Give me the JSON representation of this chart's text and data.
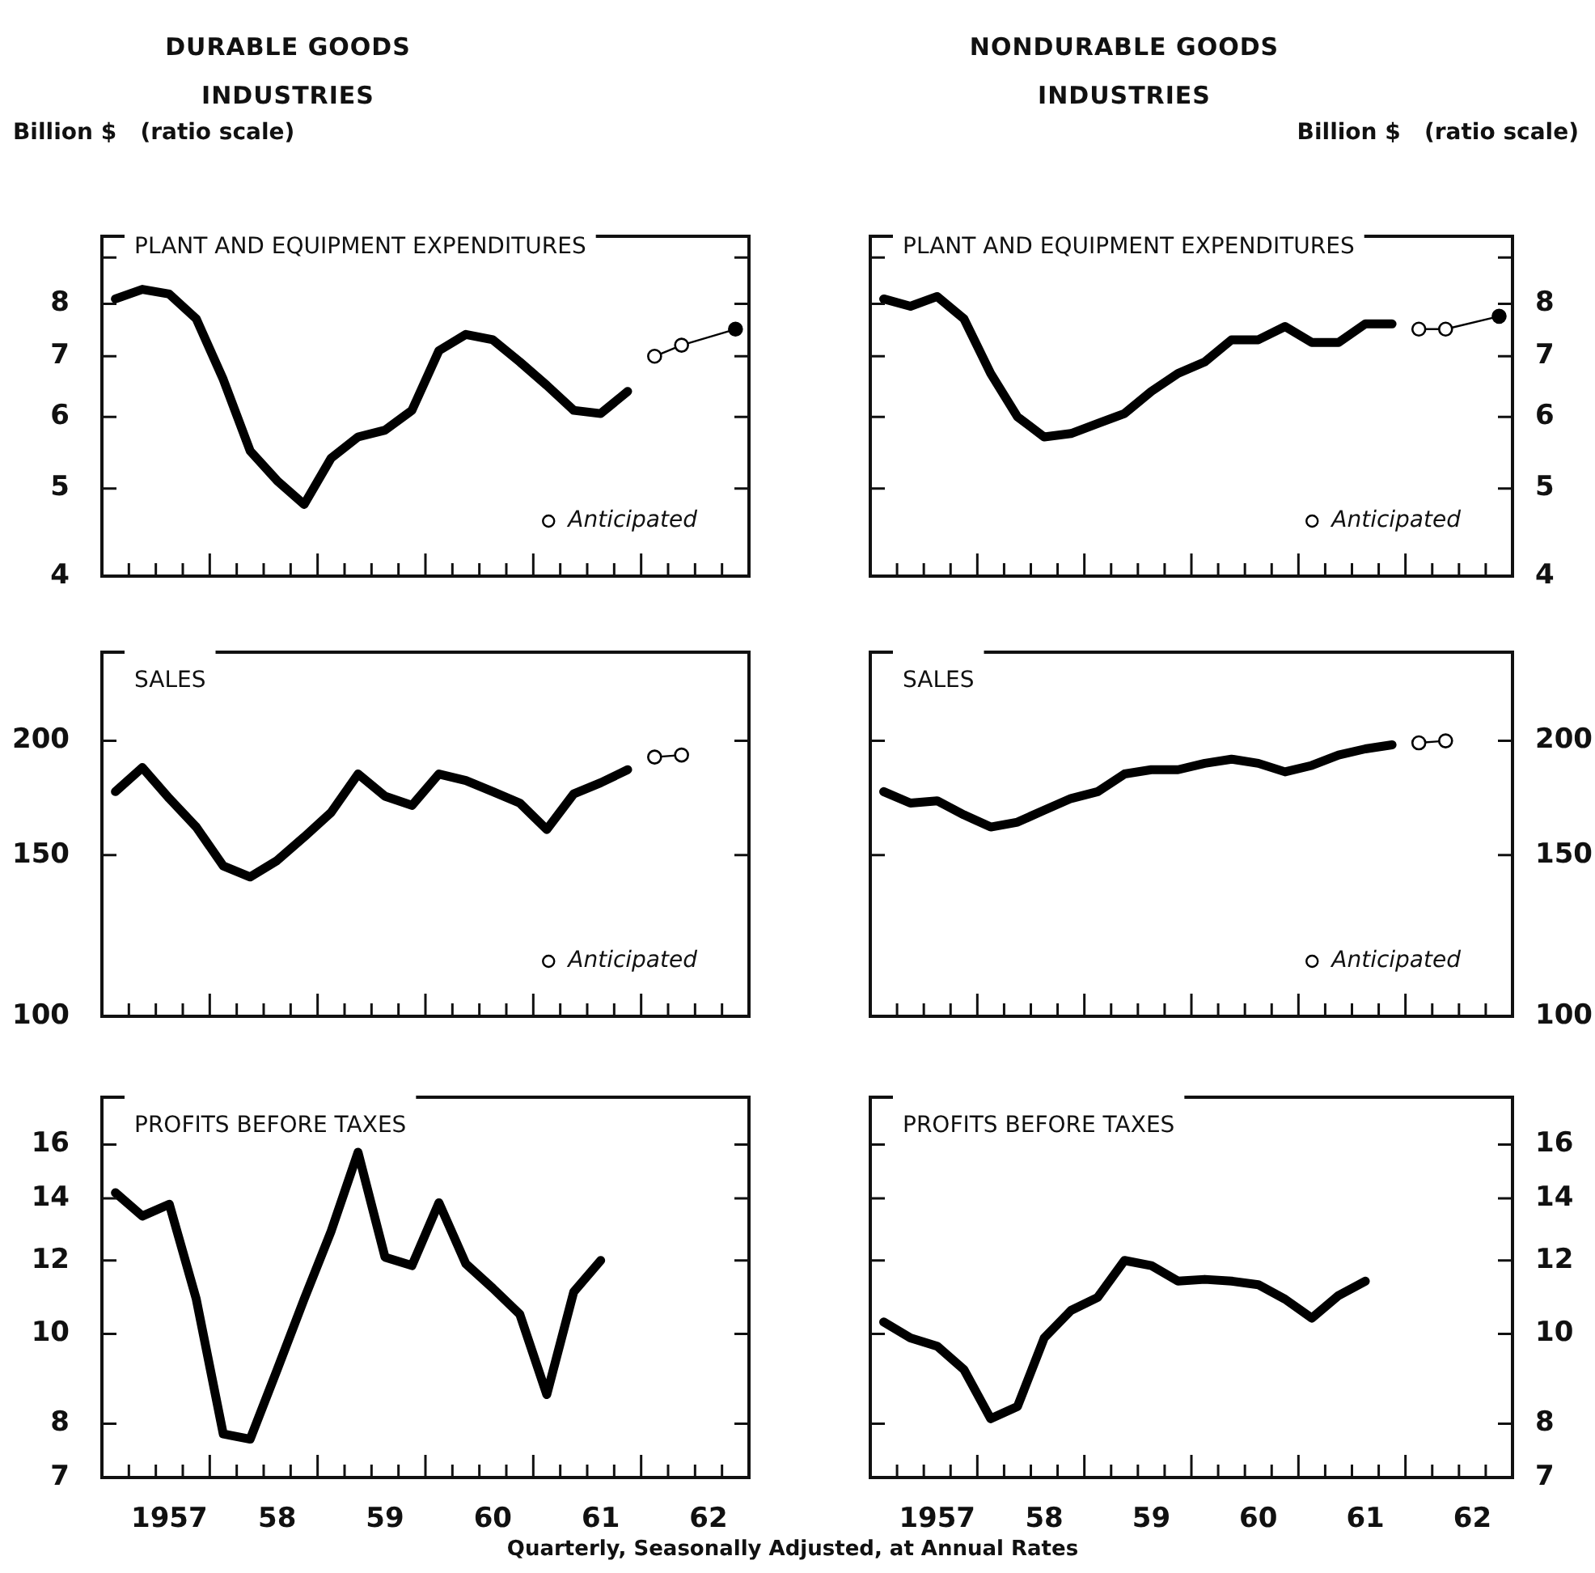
{
  "chart_data": [
    {
      "type": "line",
      "subtitle": "DURABLE GOODS INDUSTRIES",
      "ylabel": "Billion $   (ratio scale)",
      "title": "PLANT AND EQUIPMENT EXPENDITURES",
      "log": true,
      "legend": "bottom right",
      "tick_labels": "y",
      "categories": [
        null,
        null,
        "1957",
        null,
        null,
        null,
        "58",
        null,
        null,
        null,
        "59",
        null,
        null,
        null,
        "60",
        null,
        null,
        null,
        "61",
        null,
        null,
        null,
        "62",
        null
      ],
      "ylim": [
        4,
        9.5
      ],
      "yticks": [
        4,
        5,
        6,
        7,
        8,
        {
          "value": 9,
          "label": null
        }
      ],
      "series": [
        {
          "color": "#000000",
          "marker": "none",
          "values": [
            8.1,
            8.3,
            8.2,
            7.7,
            6.6,
            5.5,
            5.1,
            4.8,
            5.4,
            5.7,
            5.8,
            6.1,
            7.1,
            7.4,
            7.3,
            6.9,
            6.5,
            6.1,
            6.05,
            6.4,
            null,
            null,
            null,
            null
          ]
        },
        {
          "name": "Anticipated",
          "color": "#000000",
          "marker": "circle",
          "colors": [
            null,
            null,
            null,
            null,
            null,
            null,
            null,
            null,
            null,
            null,
            null,
            null,
            null,
            null,
            null,
            null,
            null,
            null,
            null,
            null,
            "#ffffff",
            "#ffffff",
            null,
            "#000000"
          ],
          "values": [
            null,
            null,
            null,
            null,
            null,
            null,
            null,
            null,
            null,
            null,
            null,
            null,
            null,
            null,
            null,
            null,
            null,
            null,
            null,
            null,
            7.0,
            7.2,
            null,
            7.5
          ]
        }
      ]
    },
    {
      "type": "line",
      "subtitle": "NONDURABLE GOODS INDUSTRIES",
      "y2label": "Billion $   (ratio scale)",
      "title": "PLANT AND EQUIPMENT EXPENDITURES",
      "log": "y2",
      "legend": "bottom right",
      "tick_labels": "y",
      "categories": [
        null,
        null,
        "1957",
        null,
        null,
        null,
        "58",
        null,
        null,
        null,
        "59",
        null,
        null,
        null,
        "60",
        null,
        null,
        null,
        "61",
        null,
        null,
        null,
        "62",
        null
      ],
      "y2lim": [
        4,
        9.5
      ],
      "y2ticks": [
        4,
        5,
        6,
        7,
        8,
        {
          "value": 9,
          "label": null
        }
      ],
      "series": [
        {
          "color": "#000000",
          "marker": "none",
          "axis": "y2",
          "values": [
            8.1,
            7.95,
            8.15,
            7.7,
            6.7,
            6.0,
            5.7,
            5.75,
            5.9,
            6.05,
            6.4,
            6.7,
            6.9,
            7.3,
            7.3,
            7.55,
            7.25,
            7.25,
            7.6,
            7.6,
            null,
            null,
            null,
            null
          ]
        },
        {
          "name": "Anticipated",
          "color": "#000000",
          "marker": "circle",
          "axis": "y2",
          "colors": [
            null,
            null,
            null,
            null,
            null,
            null,
            null,
            null,
            null,
            null,
            null,
            null,
            null,
            null,
            null,
            null,
            null,
            null,
            null,
            null,
            "#ffffff",
            "#ffffff",
            null,
            "#000000"
          ],
          "values": [
            null,
            null,
            null,
            null,
            null,
            null,
            null,
            null,
            null,
            null,
            null,
            null,
            null,
            null,
            null,
            null,
            null,
            null,
            null,
            null,
            7.5,
            7.5,
            null,
            7.75
          ]
        }
      ]
    },
    {
      "type": "line",
      "title": "SALES",
      "log": true,
      "legend": "bottom right",
      "tick_labels": "y",
      "categories": [
        null,
        null,
        "1957",
        null,
        null,
        null,
        "58",
        null,
        null,
        null,
        "59",
        null,
        null,
        null,
        "60",
        null,
        null,
        null,
        "61",
        null,
        null,
        null,
        "62",
        null
      ],
      "ylim": [
        100,
        250
      ],
      "yticks": [
        100,
        150,
        200
      ],
      "series": [
        {
          "color": "#000000",
          "marker": "none",
          "values": [
            176,
            187,
            173,
            161,
            146,
            142,
            148,
            157,
            167,
            184,
            174,
            170,
            184,
            181,
            176,
            171,
            160,
            175,
            180,
            186,
            null,
            null,
            null,
            null
          ]
        },
        {
          "name": "Anticipated",
          "color": "#000000",
          "marker": "circle",
          "colors": [
            null,
            null,
            null,
            null,
            null,
            null,
            null,
            null,
            null,
            null,
            null,
            null,
            null,
            null,
            null,
            null,
            null,
            null,
            null,
            null,
            "#ffffff",
            "#ffffff",
            null,
            null
          ],
          "values": [
            null,
            null,
            null,
            null,
            null,
            null,
            null,
            null,
            null,
            null,
            null,
            null,
            null,
            null,
            null,
            null,
            null,
            null,
            null,
            null,
            192,
            193,
            null,
            null
          ]
        }
      ]
    },
    {
      "type": "line",
      "title": "SALES",
      "log": "y2",
      "legend": "bottom right",
      "tick_labels": "y",
      "categories": [
        null,
        null,
        "1957",
        null,
        null,
        null,
        "58",
        null,
        null,
        null,
        "59",
        null,
        null,
        null,
        "60",
        null,
        null,
        null,
        "61",
        null,
        null,
        null,
        "62",
        null
      ],
      "y2lim": [
        100,
        250
      ],
      "y2ticks": [
        100,
        150,
        200
      ],
      "series": [
        {
          "color": "#000000",
          "marker": "none",
          "axis": "y2",
          "values": [
            176,
            171,
            172,
            166,
            161,
            163,
            168,
            173,
            176,
            184,
            186,
            186,
            189,
            191,
            189,
            185,
            188,
            193,
            196,
            198,
            null,
            null,
            null,
            null
          ]
        },
        {
          "name": "Anticipated",
          "color": "#000000",
          "marker": "circle",
          "axis": "y2",
          "colors": [
            null,
            null,
            null,
            null,
            null,
            null,
            null,
            null,
            null,
            null,
            null,
            null,
            null,
            null,
            null,
            null,
            null,
            null,
            null,
            null,
            "#ffffff",
            "#ffffff",
            null,
            null
          ],
          "values": [
            null,
            null,
            null,
            null,
            null,
            null,
            null,
            null,
            null,
            null,
            null,
            null,
            null,
            null,
            null,
            null,
            null,
            null,
            null,
            null,
            199,
            200,
            null,
            null
          ]
        }
      ]
    },
    {
      "type": "line",
      "title": "PROFITS BEFORE TAXES",
      "log": true,
      "annotations": [
        "Quarterly, Seasonally Adjusted, at Annual Rates"
      ],
      "categories": [
        null,
        null,
        "1957",
        null,
        null,
        null,
        "58",
        null,
        null,
        null,
        "59",
        null,
        null,
        null,
        "60",
        null,
        null,
        null,
        "61",
        null,
        null,
        null,
        "62",
        null
      ],
      "ylim": [
        7,
        18
      ],
      "yticks": [
        7,
        8,
        10,
        12,
        14,
        16
      ],
      "series": [
        {
          "color": "#000000",
          "marker": "none",
          "values": [
            14.2,
            13.4,
            13.8,
            10.9,
            7.8,
            7.7,
            9.15,
            10.9,
            12.9,
            15.7,
            12.1,
            11.85,
            13.85,
            11.9,
            11.2,
            10.5,
            8.6,
            11.1,
            12.0,
            null,
            null,
            null,
            null,
            null
          ]
        }
      ]
    },
    {
      "type": "line",
      "title": "PROFITS BEFORE TAXES",
      "log": "y2",
      "categories": [
        null,
        null,
        "1957",
        null,
        null,
        null,
        "58",
        null,
        null,
        null,
        "59",
        null,
        null,
        null,
        "60",
        null,
        null,
        null,
        "61",
        null,
        null,
        null,
        "62",
        null
      ],
      "y2lim": [
        7,
        18
      ],
      "y2ticks": [
        7,
        8,
        10,
        12,
        14,
        16
      ],
      "series": [
        {
          "color": "#000000",
          "marker": "none",
          "axis": "y2",
          "values": [
            10.3,
            9.9,
            9.7,
            9.15,
            8.1,
            8.35,
            9.9,
            10.6,
            10.95,
            12.0,
            11.85,
            11.4,
            11.45,
            11.4,
            11.3,
            10.9,
            10.4,
            11.0,
            11.4,
            null,
            null,
            null,
            null,
            null
          ]
        }
      ]
    }
  ]
}
